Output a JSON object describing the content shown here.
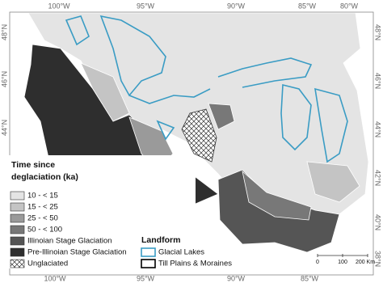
{
  "graticule": {
    "top": [
      "100°W",
      "95°W",
      "90°W",
      "85°W",
      "80°W"
    ],
    "bottom": [
      "100°W",
      "95°W",
      "90°W",
      "85°W"
    ],
    "left": [
      "48°N",
      "46°N",
      "44°N"
    ],
    "right": [
      "48°N",
      "46°N",
      "44°N",
      "42°N",
      "40°N",
      "38°N"
    ]
  },
  "legend_age": {
    "title": [
      "Time since",
      "deglaciation (ka)"
    ],
    "items": [
      {
        "label": "10 - < 15",
        "color": "#e4e4e4"
      },
      {
        "label": "15 - < 25",
        "color": "#c4c4c4"
      },
      {
        "label": "25 - < 50",
        "color": "#9a9a9a"
      },
      {
        "label": "50 - < 100",
        "color": "#787878"
      },
      {
        "label": "Illinoian Stage Glaciation",
        "color": "#555555"
      },
      {
        "label": "Pre-Illinoian Stage Glaciation",
        "color": "#2e2e2e"
      },
      {
        "label": "Unglaciated",
        "color": "hatch"
      }
    ]
  },
  "legend_landform": {
    "title": "Landform",
    "items": [
      {
        "label": "Glacial Lakes",
        "color": "#3a9cc4"
      },
      {
        "label": "Till Plains & Moraines",
        "color": "#000000"
      }
    ]
  },
  "scale_bar": {
    "labels": [
      "0",
      "100",
      "200 Km"
    ]
  }
}
